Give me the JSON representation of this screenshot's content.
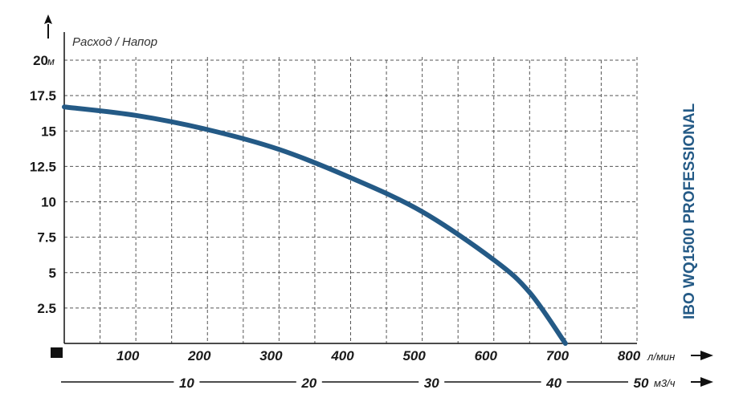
{
  "colors": {
    "curve": "#245a86",
    "title": "#245a86",
    "grid": "#555555",
    "axis": "#111111"
  },
  "chart_data": {
    "type": "line",
    "title": "IBO WQ1500 PROFESSIONAL",
    "ylabel": "Расход / Напор",
    "y_unit": "м",
    "x_unit": "л/мин",
    "x2_unit": "м3/ч",
    "xlim": [
      0,
      800
    ],
    "ylim": [
      0,
      20
    ],
    "x2lim": [
      0,
      48
    ],
    "grid": true,
    "y_ticks": [
      {
        "value": 20,
        "label": "20"
      },
      {
        "value": 17.5,
        "label": "17.5"
      },
      {
        "value": 15,
        "label": "15"
      },
      {
        "value": 12.5,
        "label": "12.5"
      },
      {
        "value": 10,
        "label": "10"
      },
      {
        "value": 7.5,
        "label": "7.5"
      },
      {
        "value": 5,
        "label": "5"
      },
      {
        "value": 2.5,
        "label": "2.5"
      }
    ],
    "x_ticks": [
      {
        "value": 100,
        "label": "100"
      },
      {
        "value": 200,
        "label": "200"
      },
      {
        "value": 300,
        "label": "300"
      },
      {
        "value": 400,
        "label": "400"
      },
      {
        "value": 500,
        "label": "500"
      },
      {
        "value": 600,
        "label": "600"
      },
      {
        "value": 700,
        "label": "700"
      },
      {
        "value": 800,
        "label": "800"
      }
    ],
    "x2_ticks": [
      {
        "value": 10,
        "label": "10"
      },
      {
        "value": 20,
        "label": "20"
      },
      {
        "value": 30,
        "label": "30"
      },
      {
        "value": 40,
        "label": "40"
      },
      {
        "value": 50,
        "label": "50"
      }
    ],
    "series": [
      {
        "x": [
          0,
          100,
          200,
          300,
          400,
          500,
          600,
          650,
          700
        ],
        "y": [
          16.7,
          16.1,
          15.1,
          13.7,
          11.7,
          9.3,
          5.9,
          3.6,
          0
        ]
      }
    ]
  }
}
